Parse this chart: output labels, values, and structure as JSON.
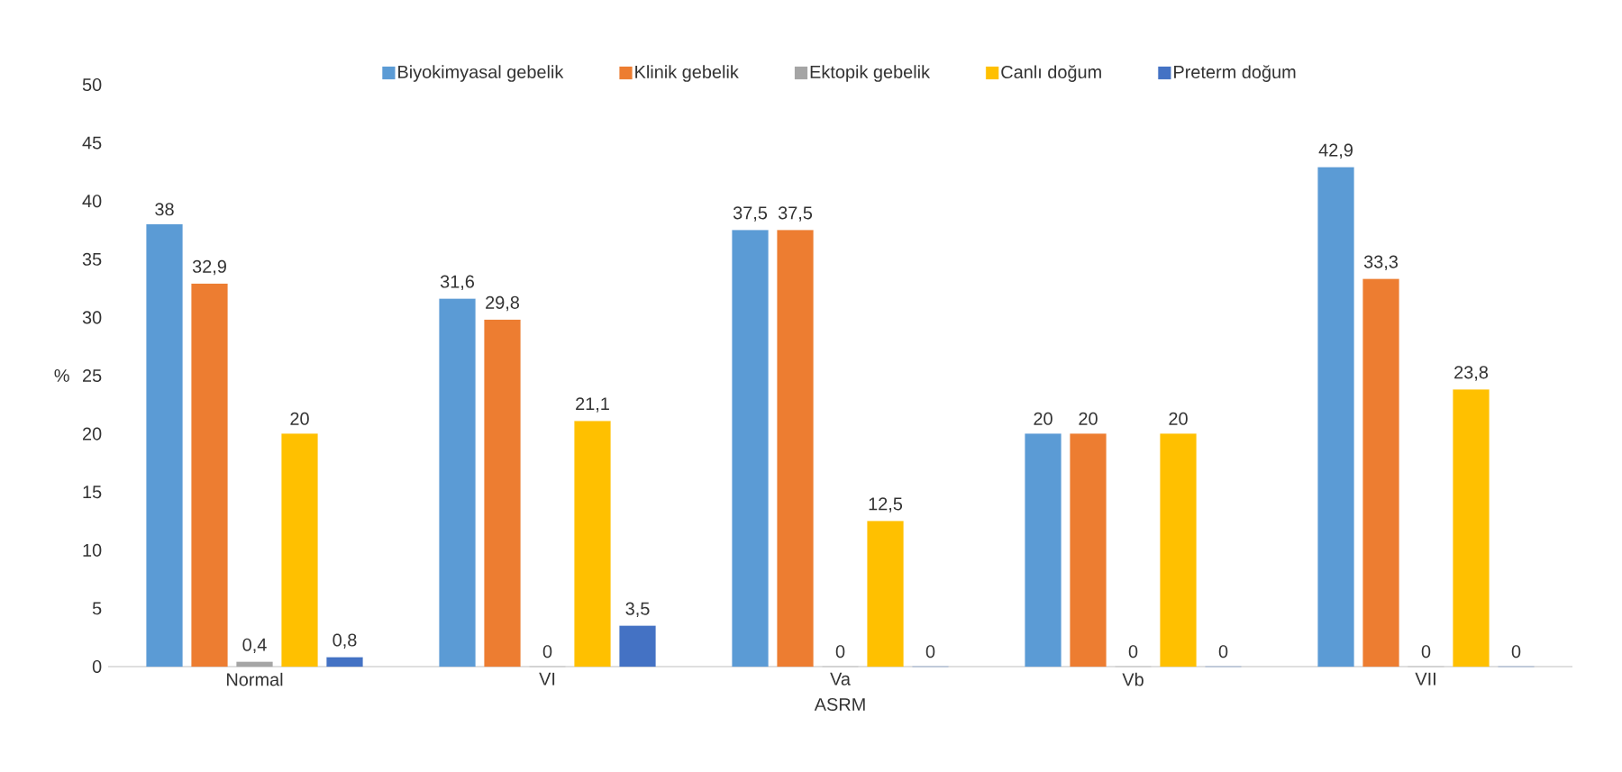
{
  "chart_data": {
    "type": "bar",
    "xlabel": "ASRM",
    "ylabel": "%",
    "categories": [
      "Normal",
      "VI",
      "Va",
      "Vb",
      "VII"
    ],
    "ylim": [
      0,
      50
    ],
    "yticks": [
      0,
      5,
      10,
      15,
      20,
      25,
      30,
      35,
      40,
      45,
      50
    ],
    "legend": "top",
    "series": [
      {
        "name": "Biyokimyasal gebelik",
        "color": "#5b9bd5",
        "values": [
          38,
          31.6,
          37.5,
          20,
          42.9
        ],
        "value_labels": [
          "38",
          "31,6",
          "37,5",
          "20",
          "42,9"
        ]
      },
      {
        "name": "Klinik gebelik",
        "color": "#ed7d31",
        "values": [
          32.9,
          29.8,
          37.5,
          20,
          33.3
        ],
        "value_labels": [
          "32,9",
          "29,8",
          "37,5",
          "20",
          "33,3"
        ]
      },
      {
        "name": "Ektopik gebelik",
        "color": "#a5a5a5",
        "values": [
          0.4,
          0,
          0,
          0,
          0
        ],
        "value_labels": [
          "0,4",
          "0",
          "0",
          "0",
          "0"
        ]
      },
      {
        "name": "Canlı doğum",
        "color": "#ffc000",
        "values": [
          20,
          21.1,
          12.5,
          20,
          23.8
        ],
        "value_labels": [
          "20",
          "21,1",
          "12,5",
          "20",
          "23,8"
        ]
      },
      {
        "name": "Preterm doğum",
        "color": "#4472c4",
        "values": [
          0.8,
          3.5,
          0,
          0,
          0
        ],
        "value_labels": [
          "0,8",
          "3,5",
          "0",
          "0",
          "0"
        ]
      }
    ]
  }
}
